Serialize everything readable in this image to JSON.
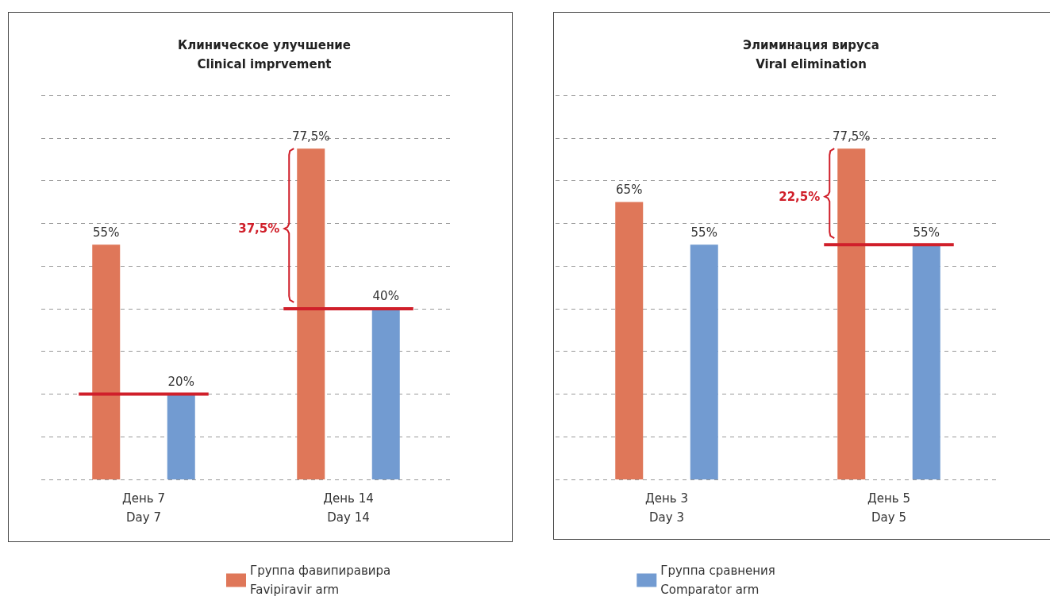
{
  "chart_data": [
    {
      "type": "bar",
      "title": "Клиническое улучшение\nClinical imprvement",
      "categories": [
        "День 7\nDay 7",
        "День 14\nDay 14"
      ],
      "series": [
        {
          "name": "Группа фавипиравира\nFavipiravir arm",
          "color": "#df7759",
          "values": [
            55,
            77.5
          ],
          "value_labels": [
            "55%",
            "77,5%"
          ]
        },
        {
          "name": "Группа сравнения\nComparator arm",
          "color": "#729bd1",
          "values": [
            20,
            40
          ],
          "value_labels": [
            "20%",
            "40%"
          ]
        }
      ],
      "ylim": [
        0,
        90
      ],
      "yticks": [
        0,
        10,
        20,
        30,
        40,
        50,
        60,
        70,
        80,
        90
      ],
      "tick_labels": "x",
      "grid": "y",
      "legend": "bottom",
      "ref_lines": [
        {
          "axis": "y",
          "value": 20,
          "color": "#d01f2a"
        },
        {
          "axis": "y",
          "value": 40,
          "color": "#d01f2a"
        }
      ],
      "annotations": [
        "37,5%"
      ]
    },
    {
      "type": "bar",
      "title": "Элиминация вируса\nViral elimination",
      "categories": [
        "День 3\nDay 3",
        "День 5\nDay 5"
      ],
      "series": [
        {
          "name": "Группа фавипиравира\nFavipiravir arm",
          "color": "#df7759",
          "values": [
            65,
            77.5
          ],
          "value_labels": [
            "65%",
            "77,5%"
          ]
        },
        {
          "name": "Группа сравнения\nComparator arm",
          "color": "#729bd1",
          "values": [
            55,
            55
          ],
          "value_labels": [
            "55%",
            "55%"
          ]
        }
      ],
      "ylim": [
        0,
        90
      ],
      "yticks": [
        0,
        10,
        20,
        30,
        40,
        50,
        60,
        70,
        80,
        90
      ],
      "tick_labels": "x",
      "grid": "y",
      "legend": "bottom",
      "ref_lines": [
        {
          "axis": "y",
          "value": 55,
          "color": "#d01f2a"
        }
      ],
      "annotations": [
        "22,5%"
      ]
    }
  ]
}
